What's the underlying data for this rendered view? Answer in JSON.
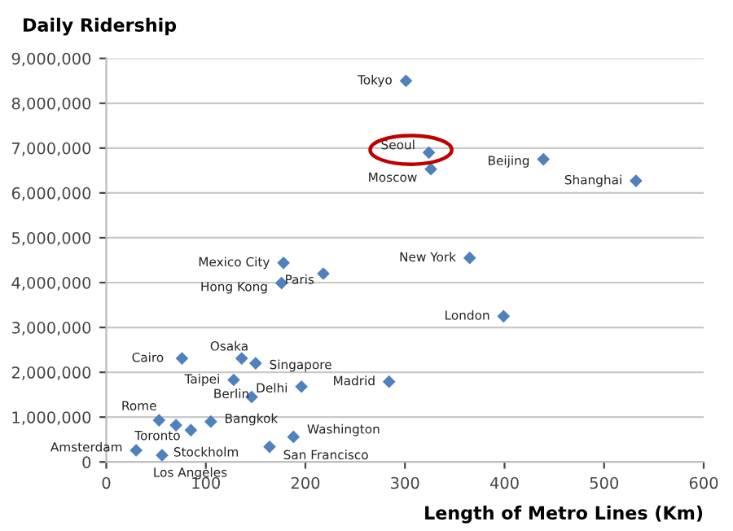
{
  "chart_data": {
    "type": "scatter",
    "title": "Daily Ridership",
    "xlabel": "Length of Metro Lines (Km)",
    "x": [
      301,
      324,
      326,
      439,
      532,
      365,
      178,
      218,
      176,
      399,
      76,
      136,
      150,
      128,
      196,
      284,
      146,
      53,
      70,
      85,
      105,
      188,
      164,
      30,
      56
    ],
    "values": [
      8500000,
      6900000,
      6530000,
      6750000,
      6270000,
      4550000,
      4440000,
      4200000,
      3990000,
      3250000,
      2310000,
      2310000,
      2200000,
      1830000,
      1680000,
      1790000,
      1450000,
      930000,
      820000,
      710000,
      900000,
      560000,
      340000,
      260000,
      150000
    ],
    "color": "#4f81bd",
    "marker": "diamond",
    "grid": "y",
    "xlim": [
      0,
      600
    ],
    "xticks": [
      0,
      100,
      200,
      300,
      400,
      500,
      600
    ],
    "ylim": [
      0,
      9000000
    ],
    "yticks": [
      0,
      {
        "value": 1000000,
        "label": "1,000,000"
      },
      {
        "value": 2000000,
        "label": "2,000,000"
      },
      {
        "value": 3000000,
        "label": "3,000,000"
      },
      {
        "value": 4000000,
        "label": "4,000,000"
      },
      {
        "value": 5000000,
        "label": "5,000,000"
      },
      {
        "value": 6000000,
        "label": "6,000,000"
      },
      {
        "value": 7000000,
        "label": "7,000,000"
      },
      {
        "value": 8000000,
        "label": "8,000,000"
      },
      {
        "value": 9000000,
        "label": "9,000,000"
      }
    ],
    "annotations": [
      {
        "text": "Tokyo",
        "x": 301,
        "y": 8500000
      },
      {
        "text": "Seoul",
        "x": 324,
        "y": 6900000
      },
      {
        "text": "Moscow",
        "x": 326,
        "y": 6530000
      },
      {
        "text": "Beijing",
        "x": 439,
        "y": 6750000
      },
      {
        "text": "Shanghai",
        "x": 532,
        "y": 6270000
      },
      {
        "text": "New York",
        "x": 365,
        "y": 4550000
      },
      {
        "text": "Mexico City",
        "x": 178,
        "y": 4440000
      },
      {
        "text": "Paris",
        "x": 218,
        "y": 4200000
      },
      {
        "text": "Hong Kong",
        "x": 176,
        "y": 3990000
      },
      {
        "text": "London",
        "x": 399,
        "y": 3250000
      },
      {
        "text": "Cairo",
        "x": 76,
        "y": 2310000
      },
      {
        "text": "Osaka",
        "x": 136,
        "y": 2310000
      },
      {
        "text": "Singapore",
        "x": 150,
        "y": 2200000
      },
      {
        "text": "Taipei",
        "x": 128,
        "y": 1830000
      },
      {
        "text": "Delhi",
        "x": 196,
        "y": 1680000
      },
      {
        "text": "Madrid",
        "x": 284,
        "y": 1790000
      },
      {
        "text": "Berlin",
        "x": 146,
        "y": 1450000
      },
      {
        "text": "Rome",
        "x": 53,
        "y": 930000
      },
      {
        "text": "Toronto",
        "x": 70,
        "y": 820000
      },
      {
        "text": "Bangkok",
        "x": 105,
        "y": 900000
      },
      {
        "text": "Washington",
        "x": 188,
        "y": 560000
      },
      {
        "text": "San Francisco",
        "x": 164,
        "y": 340000
      },
      {
        "text": "Amsterdam",
        "x": 30,
        "y": 260000
      },
      {
        "text": "Stockholm",
        "x": 56,
        "y": 150000
      },
      {
        "text": "Los Angeles",
        "x": 56,
        "y": 150000
      }
    ]
  }
}
